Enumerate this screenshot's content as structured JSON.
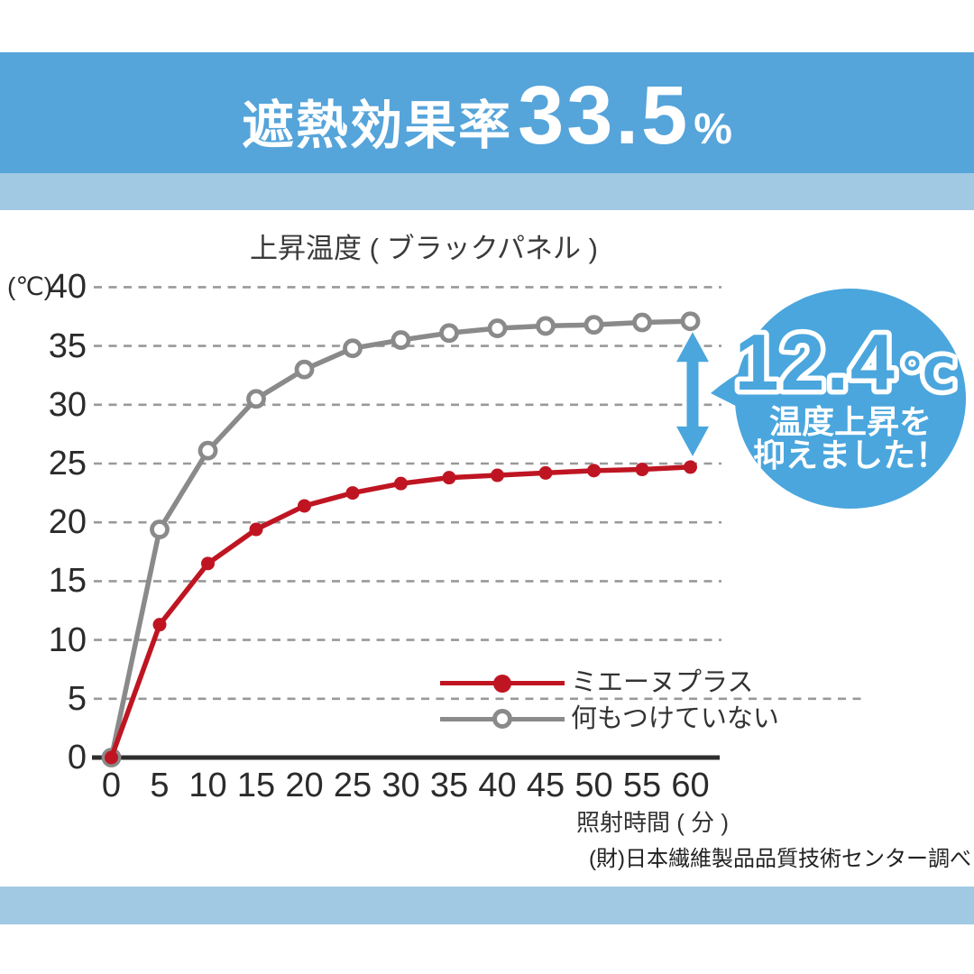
{
  "header": {
    "label": "遮熱効果率",
    "value": "33.5",
    "unit": "%"
  },
  "chart_data": {
    "type": "line",
    "title": "上昇温度 ( ブラックパネル )",
    "y_axis_unit": "(℃)",
    "xlabel": "照射時間 ( 分 )",
    "x": [
      0,
      5,
      10,
      15,
      20,
      25,
      30,
      35,
      40,
      45,
      50,
      55,
      60
    ],
    "ylim": [
      0,
      40
    ],
    "ytick_interval": 5,
    "grid": "horizontal-dashed",
    "legend_position": "inside-lower-right",
    "series": [
      {
        "name": "ミエーヌプラス",
        "color": "#bf1522",
        "marker": "filled-circle",
        "values": [
          0,
          11.3,
          16.5,
          19.4,
          21.4,
          22.5,
          23.3,
          23.8,
          24.0,
          24.2,
          24.4,
          24.5,
          24.7
        ]
      },
      {
        "name": "何もつけていない",
        "color": "#8a8a8a",
        "marker": "open-circle",
        "values": [
          0,
          19.4,
          26.1,
          30.5,
          33.0,
          34.8,
          35.5,
          36.1,
          36.5,
          36.7,
          36.8,
          37.0,
          37.1
        ]
      }
    ]
  },
  "annotation": {
    "value": "12.4",
    "unit": "℃",
    "line1": "温度上昇を",
    "line2": "抑えました！"
  },
  "source": "(財)日本繊維製品品質技術センター調べ",
  "colors": {
    "header_bg": "#55a4da",
    "stripe": "#a2c9e3",
    "accent_blue": "#4aa6dd",
    "axis": "#2e2e2e",
    "grid": "#999999"
  }
}
